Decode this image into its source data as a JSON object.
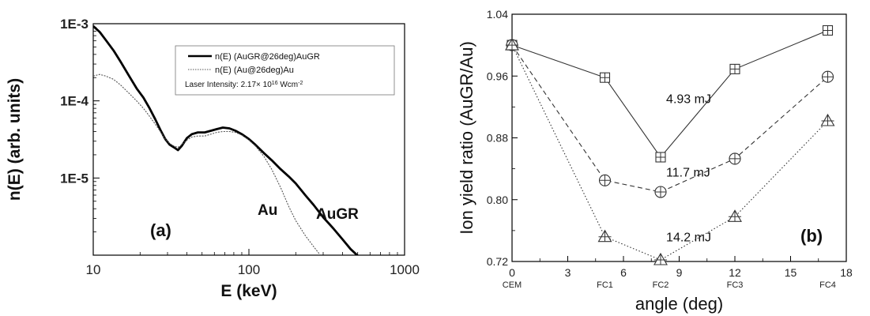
{
  "chart_data": [
    {
      "type": "line",
      "panel_label": "(a)",
      "xlabel": "E (keV)",
      "ylabel": "n(E) (arb. units)",
      "xscale": "log",
      "yscale": "log",
      "xlim": [
        10,
        1000
      ],
      "ylim": [
        1e-06,
        0.001
      ],
      "x_ticks": [
        10,
        100,
        1000
      ],
      "x_tick_labels": [
        "10",
        "100",
        "1000"
      ],
      "y_ticks": [
        0.001,
        0.0001,
        1e-05
      ],
      "y_tick_labels": [
        "1E-3",
        "1E-4",
        "1E-5"
      ],
      "legend": {
        "position": "top-right",
        "entries": [
          "n(E) (AuGR@26deg)AuGR",
          "n(E) (Au@26deg)Au"
        ],
        "note": "Laser Intensity: 2.17× 10",
        "note_exp": "16",
        "note_unit": " Wcm",
        "note_unit_exp": "-2"
      },
      "annotations": [
        "Au",
        "AuGR"
      ],
      "series": [
        {
          "name": "n(E) (AuGR@26deg)AuGR",
          "style": "thick-solid",
          "color": "#000000",
          "points": [
            [
              10,
              0.00093
            ],
            [
              11,
              0.00078
            ],
            [
              12,
              0.00062
            ],
            [
              13.5,
              0.00045
            ],
            [
              15,
              0.00032
            ],
            [
              17,
              0.00021
            ],
            [
              19,
              0.000145
            ],
            [
              21,
              0.00011
            ],
            [
              23,
              8e-05
            ],
            [
              25,
              5.8e-05
            ],
            [
              27,
              4.2e-05
            ],
            [
              29,
              3.2e-05
            ],
            [
              31,
              2.7e-05
            ],
            [
              33,
              2.5e-05
            ],
            [
              35,
              2.3e-05
            ],
            [
              37,
              2.6e-05
            ],
            [
              40,
              3.3e-05
            ],
            [
              43,
              3.7e-05
            ],
            [
              47,
              3.9e-05
            ],
            [
              52,
              3.9e-05
            ],
            [
              57,
              4.1e-05
            ],
            [
              62,
              4.3e-05
            ],
            [
              68,
              4.5e-05
            ],
            [
              75,
              4.4e-05
            ],
            [
              82,
              4.1e-05
            ],
            [
              90,
              3.7e-05
            ],
            [
              100,
              3.2e-05
            ],
            [
              110,
              2.7e-05
            ],
            [
              125,
              2.1e-05
            ],
            [
              140,
              1.7e-05
            ],
            [
              160,
              1.3e-05
            ],
            [
              180,
              1.05e-05
            ],
            [
              200,
              8.5e-06
            ],
            [
              230,
              6e-06
            ],
            [
              260,
              4.5e-06
            ],
            [
              300,
              3.1e-06
            ],
            [
              350,
              2.2e-06
            ],
            [
              400,
              1.6e-06
            ],
            [
              450,
              1.2e-06
            ],
            [
              510,
              9.5e-07
            ]
          ]
        },
        {
          "name": "n(E) (Au@26deg)Au",
          "style": "thin-dotted",
          "color": "#555555",
          "points": [
            [
              10,
              0.00021
            ],
            [
              11,
              0.00022
            ],
            [
              12,
              0.00021
            ],
            [
              13.5,
              0.00019
            ],
            [
              15,
              0.00016
            ],
            [
              17,
              0.000125
            ],
            [
              19,
              0.0001
            ],
            [
              21,
              8e-05
            ],
            [
              23,
              6.3e-05
            ],
            [
              25,
              5e-05
            ],
            [
              27,
              4e-05
            ],
            [
              29,
              3.2e-05
            ],
            [
              31,
              2.8e-05
            ],
            [
              33,
              2.6e-05
            ],
            [
              35,
              2.5e-05
            ],
            [
              37,
              2.7e-05
            ],
            [
              40,
              3.1e-05
            ],
            [
              43,
              3.4e-05
            ],
            [
              47,
              3.5e-05
            ],
            [
              52,
              3.5e-05
            ],
            [
              57,
              3.7e-05
            ],
            [
              62,
              3.9e-05
            ],
            [
              68,
              4e-05
            ],
            [
              75,
              4e-05
            ],
            [
              82,
              3.9e-05
            ],
            [
              90,
              3.6e-05
            ],
            [
              100,
              3.1e-05
            ],
            [
              110,
              2.6e-05
            ],
            [
              125,
              1.9e-05
            ],
            [
              140,
              1.3e-05
            ],
            [
              160,
              7.5e-06
            ],
            [
              180,
              4.3e-06
            ],
            [
              200,
              2.8e-06
            ],
            [
              230,
              1.8e-06
            ],
            [
              260,
              1.3e-06
            ],
            [
              290,
              9.8e-07
            ]
          ]
        }
      ]
    },
    {
      "type": "line",
      "panel_label": "(b)",
      "xlabel": "angle (deg)",
      "ylabel": "Ion yield ratio (AuGR/Au)",
      "xlim": [
        0,
        18
      ],
      "ylim": [
        0.72,
        1.04
      ],
      "x_ticks": [
        0,
        3,
        6,
        9,
        12,
        15,
        18
      ],
      "x_tick_labels": [
        "0",
        "3",
        "6",
        "9",
        "12",
        "15",
        "18"
      ],
      "y_ticks": [
        0.72,
        0.8,
        0.88,
        0.96,
        1.04
      ],
      "y_tick_labels": [
        "0.72",
        "0.80",
        "0.88",
        "0.96",
        "1.04"
      ],
      "x_categories": [
        {
          "x": 0,
          "label": "CEM"
        },
        {
          "x": 5,
          "label": "FC1"
        },
        {
          "x": 8,
          "label": "FC2"
        },
        {
          "x": 12,
          "label": "FC3"
        },
        {
          "x": 17,
          "label": "FC4"
        }
      ],
      "series": [
        {
          "name": "4.93 mJ",
          "style": "solid",
          "marker": "square-plus",
          "color": "#333333",
          "x": [
            0,
            5,
            8,
            12,
            17
          ],
          "y": [
            1.0,
            0.958,
            0.855,
            0.969,
            1.019
          ]
        },
        {
          "name": "11.7 mJ",
          "style": "dashed",
          "marker": "circle-plus",
          "color": "#333333",
          "x": [
            0,
            5,
            8,
            12,
            17
          ],
          "y": [
            1.0,
            0.825,
            0.81,
            0.853,
            0.959
          ]
        },
        {
          "name": "14.2 mJ",
          "style": "dotted",
          "marker": "triangle-plus",
          "color": "#333333",
          "x": [
            0,
            5,
            8,
            12,
            17
          ],
          "y": [
            1.0,
            0.752,
            0.722,
            0.778,
            0.902
          ]
        }
      ],
      "series_labels": [
        {
          "text": "4.93 mJ",
          "x": 8.3,
          "y": 0.925
        },
        {
          "text": "11.7 mJ",
          "x": 8.3,
          "y": 0.83
        },
        {
          "text": "14.2 mJ",
          "x": 8.3,
          "y": 0.746
        }
      ]
    }
  ]
}
